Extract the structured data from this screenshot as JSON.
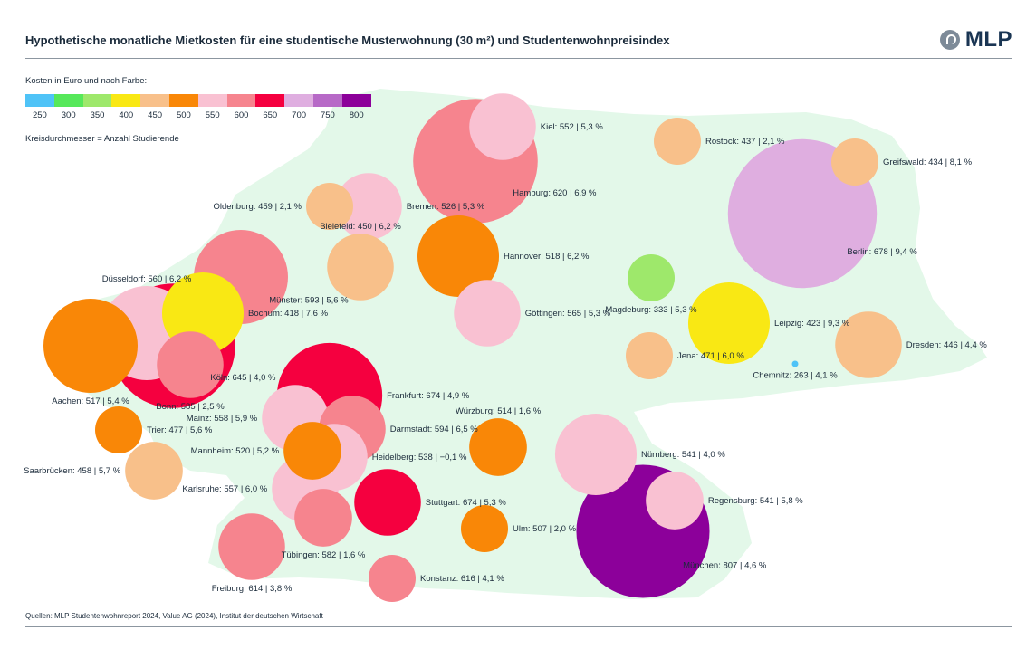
{
  "header": {
    "title": "Hypothetische monatliche Mietkosten für eine studentische Musterwohnung (30 m²) und Studentenwohnpreisindex",
    "logo_text": "MLP"
  },
  "legend": {
    "title": "Kosten in Euro und nach Farbe:",
    "size_note": "Kreisdurchmesser = Anzahl Studierende",
    "scale": [
      {
        "label": "250",
        "color": "#4fc3f7"
      },
      {
        "label": "300",
        "color": "#56e85a"
      },
      {
        "label": "350",
        "color": "#9ee86b"
      },
      {
        "label": "400",
        "color": "#f9e814"
      },
      {
        "label": "450",
        "color": "#f8c08a"
      },
      {
        "label": "500",
        "color": "#f98707"
      },
      {
        "label": "550",
        "color": "#f9c1d2"
      },
      {
        "label": "600",
        "color": "#f6848e"
      },
      {
        "label": "650",
        "color": "#f5003f"
      },
      {
        "label": "700",
        "color": "#dfaee0"
      },
      {
        "label": "750",
        "color": "#b769c7"
      },
      {
        "label": "800",
        "color": "#8c009a"
      }
    ]
  },
  "footer": {
    "source": "Quellen: MLP Studentenwohnreport 2024, Value AG (2024), Institut der deutschen Wirtschaft"
  },
  "chart_data": {
    "type": "scatter",
    "title": "Hypothetische monatliche Mietkosten für eine studentische Musterwohnung (30 m²) und Studentenwohnpreisindex",
    "map_color": "#e3f8e9",
    "series": [
      {
        "city": "Kiel",
        "cost": 552,
        "index_change": "5,3 %",
        "label": "Kiel: 552 | 5,3 %",
        "size": 2
      },
      {
        "city": "Hamburg",
        "cost": 620,
        "index_change": "6,9 %",
        "label": "Hamburg: 620 | 6,9 %",
        "size": 7
      },
      {
        "city": "Rostock",
        "cost": 437,
        "index_change": "2,1 %",
        "label": "Rostock: 437 | 2,1 %",
        "size": 1
      },
      {
        "city": "Greifswald",
        "cost": 434,
        "index_change": "8,1 %",
        "label": "Greifswald: 434 | 8,1 %",
        "size": 1
      },
      {
        "city": "Oldenburg",
        "cost": 459,
        "index_change": "2,1 %",
        "label": "Oldenburg: 459 | 2,1 %",
        "size": 1
      },
      {
        "city": "Bremen",
        "cost": 526,
        "index_change": "5,3 %",
        "label": "Bremen: 526 | 5,3 %",
        "size": 2
      },
      {
        "city": "Berlin",
        "cost": 678,
        "index_change": "9,4 %",
        "label": "Berlin: 678 | 9,4 %",
        "size": 10
      },
      {
        "city": "Bielefeld",
        "cost": 450,
        "index_change": "6,2 %",
        "label": "Bielefeld: 450 | 6,2 %",
        "size": 2
      },
      {
        "city": "Hannover",
        "cost": 518,
        "index_change": "6,2 %",
        "label": "Hannover: 518 | 6,2 %",
        "size": 3
      },
      {
        "city": "Münster",
        "cost": 593,
        "index_change": "5,6 %",
        "label": "Münster: 593 | 5,6 %",
        "size": 4
      },
      {
        "city": "Magdeburg",
        "cost": 333,
        "index_change": "5,3 %",
        "label": "Magdeburg: 333 | 5,3 %",
        "size": 1
      },
      {
        "city": "Düsseldorf",
        "cost": 560,
        "index_change": "6,2 %",
        "label": "Düsseldorf: 560 | 6,2 %",
        "size": 4
      },
      {
        "city": "Bochum",
        "cost": 418,
        "index_change": "7,6 %",
        "label": "Bochum: 418 | 7,6 %",
        "size": 3
      },
      {
        "city": "Göttingen",
        "cost": 565,
        "index_change": "5,3 %",
        "label": "Göttingen: 565 | 5,3 %",
        "size": 2
      },
      {
        "city": "Leipzig",
        "cost": 423,
        "index_change": "9,3 %",
        "label": "Leipzig: 423 | 9,3 %",
        "size": 3
      },
      {
        "city": "Köln",
        "cost": 645,
        "index_change": "4,0 %",
        "label": "Köln: 645 | 4,0 %",
        "size": 7
      },
      {
        "city": "Aachen",
        "cost": 517,
        "index_change": "5,4 %",
        "label": "Aachen: 517 | 5,4 %",
        "size": 4
      },
      {
        "city": "Jena",
        "cost": 471,
        "index_change": "6,0 %",
        "label": "Jena: 471 | 6,0 %",
        "size": 1
      },
      {
        "city": "Dresden",
        "cost": 446,
        "index_change": "4,4 %",
        "label": "Dresden: 446 | 4,4 %",
        "size": 2
      },
      {
        "city": "Bonn",
        "cost": 585,
        "index_change": "2,5 %",
        "label": "Bonn: 585 | 2,5 %",
        "size": 2
      },
      {
        "city": "Chemnitz",
        "cost": 263,
        "index_change": "4,1 %",
        "label": "Chemnitz: 263 | 4,1 %",
        "size": 0.5
      },
      {
        "city": "Frankfurt",
        "cost": 674,
        "index_change": "4,9 %",
        "label": "Frankfurt: 674 | 4,9 %",
        "size": 5
      },
      {
        "city": "Mainz",
        "cost": 558,
        "index_change": "5,9 %",
        "label": "Mainz: 558 | 5,9 %",
        "size": 2
      },
      {
        "city": "Darmstadt",
        "cost": 594,
        "index_change": "6,5 %",
        "label": "Darmstadt: 594 | 6,5 %",
        "size": 2
      },
      {
        "city": "Trier",
        "cost": 477,
        "index_change": "5,6 %",
        "label": "Trier: 477 | 5,6 %",
        "size": 1
      },
      {
        "city": "Würzburg",
        "cost": 514,
        "index_change": "1,6 %",
        "label": "Würzburg: 514 | 1,6 %",
        "size": 1.5
      },
      {
        "city": "Mannheim",
        "cost": 520,
        "index_change": "5,2 %",
        "label": "Mannheim: 520 | 5,2 %",
        "size": 1.5
      },
      {
        "city": "Heidelberg",
        "cost": 538,
        "index_change": "−0,1 %",
        "label": "Heidelberg: 538 | −0,1 %",
        "size": 2
      },
      {
        "city": "Nürnberg",
        "cost": 541,
        "index_change": "4,0 %",
        "label": "Nürnberg: 541 | 4,0 %",
        "size": 3
      },
      {
        "city": "Saarbrücken",
        "cost": 458,
        "index_change": "5,7 %",
        "label": "Saarbrücken: 458 | 5,7 %",
        "size": 1.5
      },
      {
        "city": "Karlsruhe",
        "cost": 557,
        "index_change": "6,0 %",
        "label": "Karlsruhe: 557 | 6,0 %",
        "size": 2
      },
      {
        "city": "Stuttgart",
        "cost": 674,
        "index_change": "5,3 %",
        "label": "Stuttgart: 674 | 5,3 %",
        "size": 2
      },
      {
        "city": "Regensburg",
        "cost": 541,
        "index_change": "5,8 %",
        "label": "Regensburg: 541 | 5,8 %",
        "size": 1.5
      },
      {
        "city": "Tübingen",
        "cost": 582,
        "index_change": "1,6 %",
        "label": "Tübingen: 582 | 1,6 %",
        "size": 1.5
      },
      {
        "city": "Ulm",
        "cost": 507,
        "index_change": "2,0 %",
        "label": "Ulm: 507 | 2,0 %",
        "size": 1
      },
      {
        "city": "München",
        "cost": 807,
        "index_change": "4,6 %",
        "label": "München: 807 | 4,6 %",
        "size": 8
      },
      {
        "city": "Freiburg",
        "cost": 614,
        "index_change": "3,8 %",
        "label": "Freiburg: 614 | 3,8 %",
        "size": 2
      },
      {
        "city": "Konstanz",
        "cost": 616,
        "index_change": "4,1 %",
        "label": "Konstanz: 616 | 4,1 %",
        "size": 1
      }
    ]
  }
}
